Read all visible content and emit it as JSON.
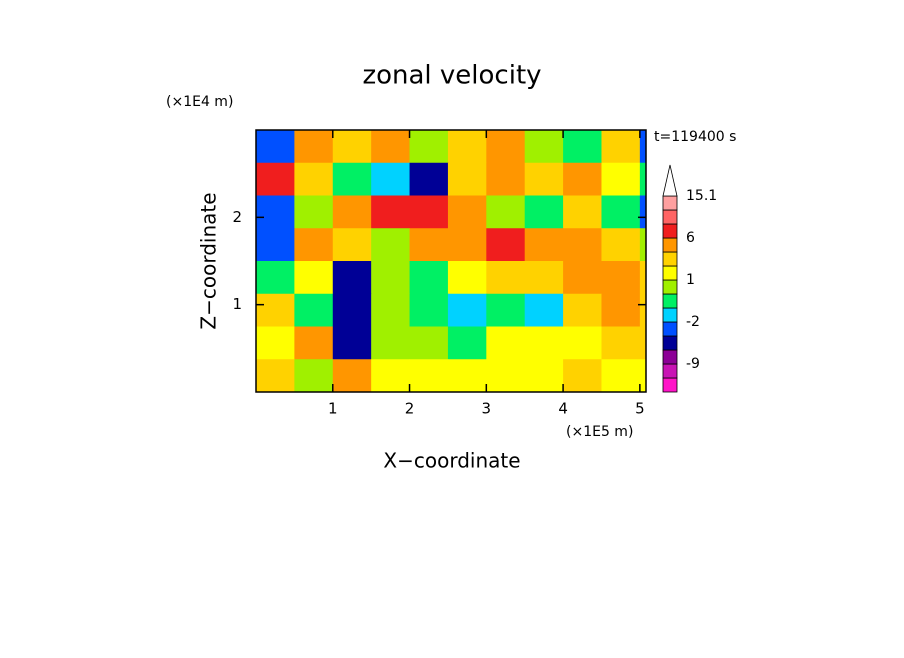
{
  "chart_data": {
    "type": "contour",
    "title": "zonal velocity",
    "y_unit": "(×1E4 m)",
    "x_unit": "(×1E5 m)",
    "time_label": "t=119400 s",
    "xlabel": "X−coordinate",
    "ylabel": "Z−coordinate",
    "xlim": [
      0,
      5.08
    ],
    "ylim": [
      0,
      3.0
    ],
    "xticks": [
      1,
      2,
      3,
      4,
      5
    ],
    "yticks": [
      1,
      2
    ],
    "x": [
      0.25,
      0.75,
      1.25,
      1.75,
      2.25,
      2.75,
      3.25,
      3.75,
      4.25,
      4.75,
      5.25
    ],
    "z": [
      2.8125,
      2.4375,
      2.0625,
      1.6875,
      1.3125,
      0.9375,
      0.5625,
      0.1875
    ],
    "values": [
      [
        -3,
        3,
        2,
        3,
        0,
        2,
        3,
        0,
        -1,
        2,
        -3
      ],
      [
        6,
        2,
        -1,
        -2,
        -6,
        2,
        3,
        2,
        3,
        1,
        -1
      ],
      [
        -3,
        0,
        3,
        6,
        6,
        3,
        0,
        -1,
        2,
        -1,
        -3
      ],
      [
        -3,
        3,
        2,
        0,
        3,
        3,
        6,
        3,
        3,
        2,
        0
      ],
      [
        -1,
        1,
        -6,
        0,
        -1,
        1,
        2,
        2,
        3,
        3,
        2
      ],
      [
        2,
        -1,
        -6,
        0,
        -1,
        -2,
        -1,
        -2,
        2,
        3,
        2
      ],
      [
        1,
        3,
        -6,
        0,
        0,
        -1,
        1,
        1,
        1,
        2,
        2
      ],
      [
        2,
        0,
        3,
        1,
        1,
        1,
        1,
        1,
        2,
        1,
        1
      ]
    ],
    "colorbar": {
      "levels": [
        -15,
        -12,
        -9,
        -6,
        -3,
        -2,
        -1,
        0,
        1,
        2,
        3,
        6,
        9,
        12,
        15.1
      ],
      "colors": [
        "#ff14c8",
        "#c814b4",
        "#8c0096",
        "#000096",
        "#0050ff",
        "#00d2ff",
        "#00f064",
        "#a0f000",
        "#ffff00",
        "#ffd200",
        "#ff9600",
        "#f01e1e",
        "#ff6464",
        "#ffa0a0"
      ],
      "extend_color": "#ffffff",
      "ticks": [
        15.1,
        6,
        1,
        -2,
        -9
      ]
    }
  }
}
